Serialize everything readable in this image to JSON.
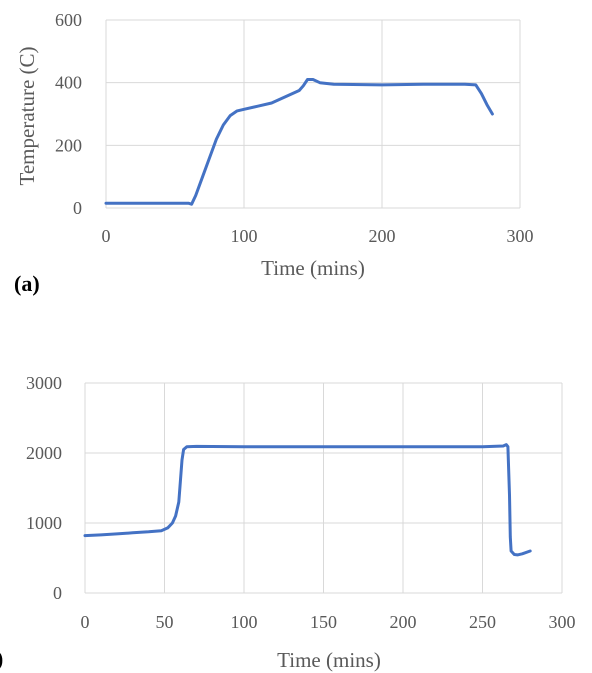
{
  "colors": {
    "series": "#4472C4",
    "grid": "#D9D9D9",
    "tick_text": "#595959"
  },
  "chart_data": [
    {
      "type": "line",
      "panel_label": "(a)",
      "title": "",
      "xlabel": "Time (mins)",
      "ylabel": "Temperature (C)",
      "xlim": [
        0,
        300
      ],
      "ylim": [
        0,
        600
      ],
      "xticks": [
        0,
        100,
        200,
        300
      ],
      "yticks": [
        0,
        200,
        400,
        600
      ],
      "grid": "vertical and horizontal",
      "legend": "none",
      "series": [
        {
          "values": [
            [
              0,
              15
            ],
            [
              20,
              15
            ],
            [
              40,
              15
            ],
            [
              60,
              15
            ],
            [
              62,
              12
            ],
            [
              65,
              40
            ],
            [
              70,
              100
            ],
            [
              75,
              160
            ],
            [
              80,
              220
            ],
            [
              85,
              265
            ],
            [
              90,
              295
            ],
            [
              95,
              310
            ],
            [
              100,
              315
            ],
            [
              110,
              325
            ],
            [
              120,
              335
            ],
            [
              130,
              355
            ],
            [
              140,
              375
            ],
            [
              143,
              390
            ],
            [
              146,
              410
            ],
            [
              150,
              410
            ],
            [
              155,
              400
            ],
            [
              165,
              395
            ],
            [
              200,
              393
            ],
            [
              230,
              395
            ],
            [
              260,
              395
            ],
            [
              268,
              393
            ],
            [
              272,
              365
            ],
            [
              276,
              330
            ],
            [
              280,
              300
            ]
          ]
        }
      ]
    },
    {
      "type": "line",
      "panel_label": ")",
      "title": "",
      "xlabel": "Time (mins)",
      "ylabel": "",
      "xlim": [
        0,
        300
      ],
      "ylim": [
        0,
        3000
      ],
      "xticks": [
        0,
        50,
        100,
        150,
        200,
        250,
        300
      ],
      "yticks": [
        0,
        1000,
        2000,
        3000
      ],
      "grid": "vertical and horizontal",
      "legend": "none",
      "series": [
        {
          "values": [
            [
              0,
              820
            ],
            [
              10,
              830
            ],
            [
              20,
              845
            ],
            [
              30,
              860
            ],
            [
              40,
              875
            ],
            [
              48,
              890
            ],
            [
              52,
              930
            ],
            [
              55,
              1000
            ],
            [
              57,
              1100
            ],
            [
              59,
              1300
            ],
            [
              60,
              1600
            ],
            [
              61,
              1900
            ],
            [
              62,
              2050
            ],
            [
              64,
              2090
            ],
            [
              70,
              2095
            ],
            [
              100,
              2090
            ],
            [
              150,
              2090
            ],
            [
              200,
              2090
            ],
            [
              250,
              2090
            ],
            [
              263,
              2100
            ],
            [
              265,
              2120
            ],
            [
              266,
              2090
            ],
            [
              267,
              1400
            ],
            [
              267.5,
              800
            ],
            [
              268,
              600
            ],
            [
              270,
              550
            ],
            [
              272,
              545
            ],
            [
              275,
              560
            ],
            [
              280,
              600
            ]
          ]
        }
      ]
    }
  ]
}
